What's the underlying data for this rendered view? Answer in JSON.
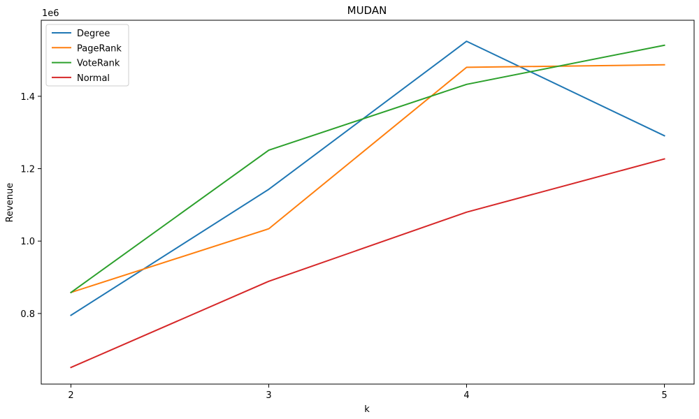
{
  "chart_data": {
    "type": "line",
    "title": "MUDAN",
    "xlabel": "k",
    "ylabel": "Revenue",
    "y_offset_text": "1e6",
    "x": [
      2,
      3,
      4,
      5
    ],
    "x_ticks": [
      "2",
      "3",
      "4",
      "5"
    ],
    "y_ticks": [
      {
        "value": 0.8,
        "label": "0.8"
      },
      {
        "value": 1.0,
        "label": "1.0"
      },
      {
        "value": 1.2,
        "label": "1.2"
      },
      {
        "value": 1.4,
        "label": "1.4"
      }
    ],
    "xlim": [
      1.85,
      5.15
    ],
    "ylim": [
      0.605,
      1.61
    ],
    "grid": false,
    "legend_position": "top-left",
    "series": [
      {
        "name": "Degree",
        "color": "#1f77b4",
        "values": [
          0.795,
          1.143,
          1.552,
          1.291
        ]
      },
      {
        "name": "PageRank",
        "color": "#ff7f0e",
        "values": [
          0.858,
          1.034,
          1.48,
          1.487
        ]
      },
      {
        "name": "VoteRank",
        "color": "#2ca02c",
        "values": [
          0.858,
          1.251,
          1.433,
          1.541
        ]
      },
      {
        "name": "Normal",
        "color": "#d62728",
        "values": [
          0.651,
          0.889,
          1.08,
          1.227
        ]
      }
    ]
  }
}
